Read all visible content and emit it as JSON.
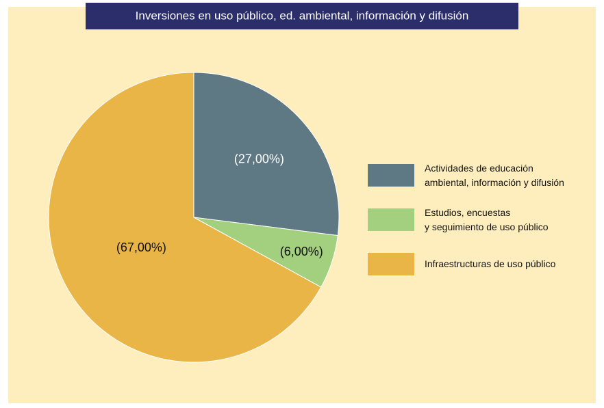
{
  "chart_data": {
    "type": "pie",
    "title": "Inversiones en uso público, ed. ambiental, información y difusión",
    "series": [
      {
        "name": "Actividades de educación\nambiental, información y difusión",
        "color": "#5e7983",
        "values": [
          27
        ],
        "value_labels": [
          "(27,00%)"
        ]
      },
      {
        "name": "Estudios, encuestas\ny seguimiento de uso público",
        "color": "#a3d07e",
        "values": [
          6
        ],
        "value_labels": [
          "(6,00%)"
        ]
      },
      {
        "name": "Infraestructuras de uso público",
        "color": "#eab547",
        "values": [
          67
        ],
        "value_labels": [
          "(67,00%)"
        ]
      }
    ],
    "legend": "right"
  }
}
